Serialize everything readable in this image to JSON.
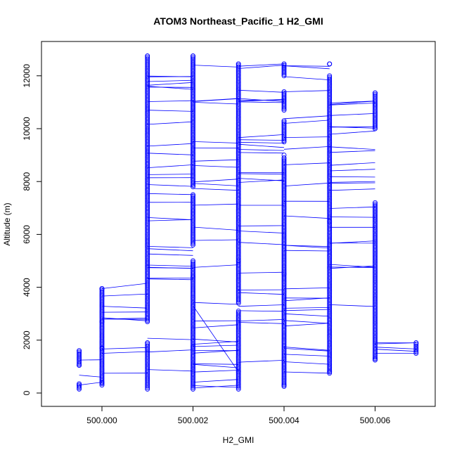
{
  "chart_data": {
    "type": "scatter",
    "title": "ATOM3 Northeast_Pacific_1 H2_GMI",
    "xlabel": "H2_GMI",
    "ylabel": "Altitude (m)",
    "xlim": [
      499.999,
      500.007
    ],
    "ylim": [
      0,
      12800
    ],
    "x_ticks": [
      500.0,
      500.002,
      500.004,
      500.006
    ],
    "x_tick_labels": [
      "500.000",
      "500.002",
      "500.004",
      "500.006"
    ],
    "y_ticks": [
      0,
      2000,
      4000,
      6000,
      8000,
      10000,
      12000
    ],
    "y_tick_labels": [
      "0",
      "2000",
      "4000",
      "6000",
      "8000",
      "10000",
      "12000"
    ],
    "grid": false,
    "marker": "open-circle",
    "color": "#0000ff",
    "series": [
      {
        "values_x": [
          499.9995,
          499.9995,
          499.9995,
          500.0,
          500.0,
          500.0,
          500.001,
          500.001,
          500.001,
          500.002,
          500.002,
          500.002,
          500.003,
          500.003,
          500.003,
          500.004,
          500.004,
          500.004,
          500.005,
          500.005,
          500.005,
          500.006,
          500.006,
          500.0069
        ],
        "values_y": [
          1600,
          1050,
          300,
          1700,
          400,
          3950,
          2700,
          12750,
          1900,
          12750,
          4400,
          1750,
          12450,
          800,
          5000,
          12450,
          300,
          9000,
          12450,
          800,
          6500,
          11350,
          1300,
          1900
        ]
      }
    ],
    "columns": [
      {
        "x": 499.9995,
        "y_ranges": [
          [
            1050,
            1600
          ],
          [
            150,
            350
          ]
        ]
      },
      {
        "x": 500.0,
        "y_ranges": [
          [
            300,
            2700
          ],
          [
            2700,
            3950
          ]
        ]
      },
      {
        "x": 500.001,
        "y_ranges": [
          [
            150,
            1900
          ],
          [
            2750,
            12750
          ]
        ]
      },
      {
        "x": 500.002,
        "y_ranges": [
          [
            150,
            3750
          ],
          [
            3800,
            5000
          ],
          [
            5600,
            7500
          ],
          [
            7800,
            12750
          ]
        ]
      },
      {
        "x": 500.003,
        "y_ranges": [
          [
            150,
            3100
          ],
          [
            3400,
            12450
          ]
        ]
      },
      {
        "x": 500.004,
        "y_ranges": [
          [
            250,
            4500
          ],
          [
            4500,
            8900
          ],
          [
            9500,
            10300
          ],
          [
            10700,
            11400
          ],
          [
            12000,
            12450
          ]
        ]
      },
      {
        "x": 500.005,
        "y_ranges": [
          [
            750,
            12000
          ],
          [
            12450,
            12450
          ]
        ]
      },
      {
        "x": 500.006,
        "y_ranges": [
          [
            1250,
            7200
          ],
          [
            10000,
            11350
          ]
        ]
      },
      {
        "x": 500.0069,
        "y_ranges": [
          [
            1500,
            1900
          ]
        ]
      }
    ]
  }
}
